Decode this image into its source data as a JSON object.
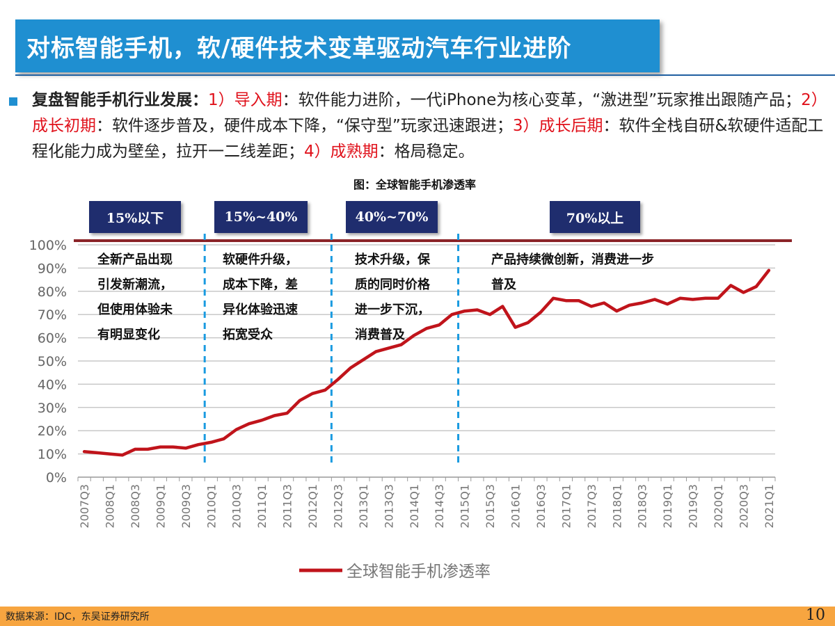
{
  "header": {
    "title": "对标智能手机，软/硬件技术变革驱动汽车行业进阶"
  },
  "summary": {
    "lead": "复盘智能手机行业发展：",
    "p1_num": "1）",
    "p1_name": "导入期",
    "p1_text": "：软件能力进阶，一代iPhone为核心变革，“激进型”玩家推出跟随产品；",
    "p2_num": "2）",
    "p2_name": "成长初期",
    "p2_text": "：软件逐步普及，硬件成本下降，“保守型”玩家迅速跟进；",
    "p3_num": "3）",
    "p3_name": "成长后期",
    "p3_text": "：软件全栈自研&软硬件适配工程化能力成为壁垒，拉开一二线差距；",
    "p4_num": "4）",
    "p4_name": "成熟期",
    "p4_text": "：格局稳定。"
  },
  "figure": {
    "caption": "图：全球智能手机渗透率",
    "phases": [
      {
        "label": "15%以下",
        "note": [
          "全新产品出现",
          "引发新潮流，",
          "但使用体验未",
          "有明显变化"
        ]
      },
      {
        "label": "15%~40%",
        "note": [
          "软硬件升级，",
          "成本下降，差",
          "异化体验迅速",
          "拓宽受众"
        ]
      },
      {
        "label": "40%~70%",
        "note": [
          "技术升级，保",
          "质的同时价格",
          "进一步下沉，",
          "消费普及"
        ]
      },
      {
        "label": "70%以上",
        "note": [
          "产品持续微创新，消费进一步",
          "普及"
        ]
      }
    ]
  },
  "chart_data": {
    "type": "line",
    "x": [
      "2007Q3",
      "2007Q4",
      "2008Q1",
      "2008Q2",
      "2008Q3",
      "2008Q4",
      "2009Q1",
      "2009Q2",
      "2009Q3",
      "2009Q4",
      "2010Q1",
      "2010Q2",
      "2010Q3",
      "2010Q4",
      "2011Q1",
      "2011Q2",
      "2011Q3",
      "2011Q4",
      "2012Q1",
      "2012Q2",
      "2012Q3",
      "2012Q4",
      "2013Q1",
      "2013Q2",
      "2013Q3",
      "2013Q4",
      "2014Q1",
      "2014Q2",
      "2014Q3",
      "2014Q4",
      "2015Q1",
      "2015Q2",
      "2015Q3",
      "2015Q4",
      "2016Q1",
      "2016Q2",
      "2016Q3",
      "2016Q4",
      "2017Q1",
      "2017Q2",
      "2017Q3",
      "2017Q4",
      "2018Q1",
      "2018Q2",
      "2018Q3",
      "2018Q4",
      "2019Q1",
      "2019Q2",
      "2019Q3",
      "2019Q4",
      "2020Q1",
      "2020Q2",
      "2020Q3",
      "2020Q4",
      "2021Q1"
    ],
    "x_tick_labels": [
      "2007Q3",
      "2008Q1",
      "2008Q3",
      "2009Q1",
      "2009Q3",
      "2010Q1",
      "2010Q3",
      "2011Q1",
      "2011Q3",
      "2012Q1",
      "2012Q3",
      "2013Q1",
      "2013Q3",
      "2014Q1",
      "2014Q3",
      "2015Q1",
      "2015Q3",
      "2016Q1",
      "2016Q3",
      "2017Q1",
      "2017Q3",
      "2018Q1",
      "2018Q3",
      "2019Q1",
      "2019Q3",
      "2020Q1",
      "2020Q3",
      "2021Q1"
    ],
    "series": [
      {
        "name": "全球智能手机渗透率",
        "color": "#c0141b",
        "values": [
          11,
          10.5,
          10,
          9.5,
          12,
          12,
          13,
          13,
          12.5,
          14,
          15,
          16.5,
          20.5,
          23,
          24.5,
          26.5,
          27.5,
          33,
          36,
          37.5,
          42,
          47,
          50.5,
          54,
          55.5,
          57,
          61,
          64,
          65.5,
          70,
          71.5,
          72,
          70,
          73.5,
          64.5,
          66.5,
          71,
          77,
          76,
          76,
          73.5,
          75,
          71.5,
          74,
          75,
          76.5,
          74.5,
          77,
          76.5,
          77,
          77,
          82.5,
          79.5,
          82,
          89
        ]
      }
    ],
    "y_ticks": [
      "0%",
      "10%",
      "20%",
      "30%",
      "40%",
      "50%",
      "60%",
      "70%",
      "80%",
      "90%",
      "100%"
    ],
    "ylim": [
      0,
      100
    ],
    "grid": true,
    "legend_position": "bottom",
    "phase_boundaries": [
      "2010Q1",
      "2012Q3",
      "2014Q4"
    ],
    "top_line_value": 100
  },
  "footer": {
    "source": "数据来源：IDC，东吴证券研究所",
    "page": "10"
  }
}
